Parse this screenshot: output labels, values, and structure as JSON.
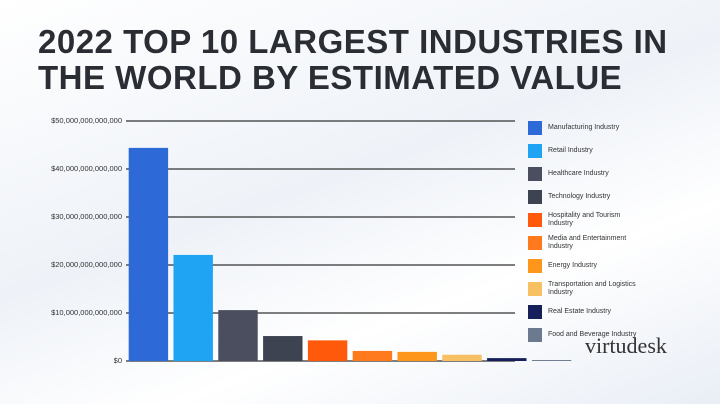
{
  "chart_data": {
    "type": "bar",
    "title": "2022 TOP 10 LARGEST INDUSTRIES IN THE WORLD BY ESTIMATED VALUE",
    "brand": "virtudesk",
    "categories": [
      "Manufacturing Industry",
      "Retail Industry",
      "Healthcare Industry",
      "Technology Industry",
      "Hospitality and Tourism Industry",
      "Media and Entertainment Industry",
      "Energy Industry",
      "Transportation and Logistics Industry",
      "Real Estate Industry",
      "Food and Beverage Industry"
    ],
    "values": [
      44400000000000,
      22100000000000,
      10600000000000,
      5200000000000,
      4300000000000,
      2100000000000,
      1900000000000,
      1300000000000,
      600000000000,
      200000000000
    ],
    "colors": [
      "#2d6ad8",
      "#1fa3f3",
      "#4a4e5e",
      "#3e4352",
      "#ff5a0c",
      "#ff7a1c",
      "#ff961c",
      "#f7c062",
      "#15205a",
      "#6c7a90"
    ],
    "ylim": [
      0,
      50000000000000
    ],
    "yticks": [
      {
        "value": 0,
        "label": "$0"
      },
      {
        "value": 10000000000000,
        "label": "$10,000,000,000,000"
      },
      {
        "value": 20000000000000,
        "label": "$20,000,000,000,000"
      },
      {
        "value": 30000000000000,
        "label": "$30,000,000,000,000"
      },
      {
        "value": 40000000000000,
        "label": "$40,000,000,000,000"
      },
      {
        "value": 50000000000000,
        "label": "$50,000,000,000,000"
      }
    ],
    "grid": true
  }
}
